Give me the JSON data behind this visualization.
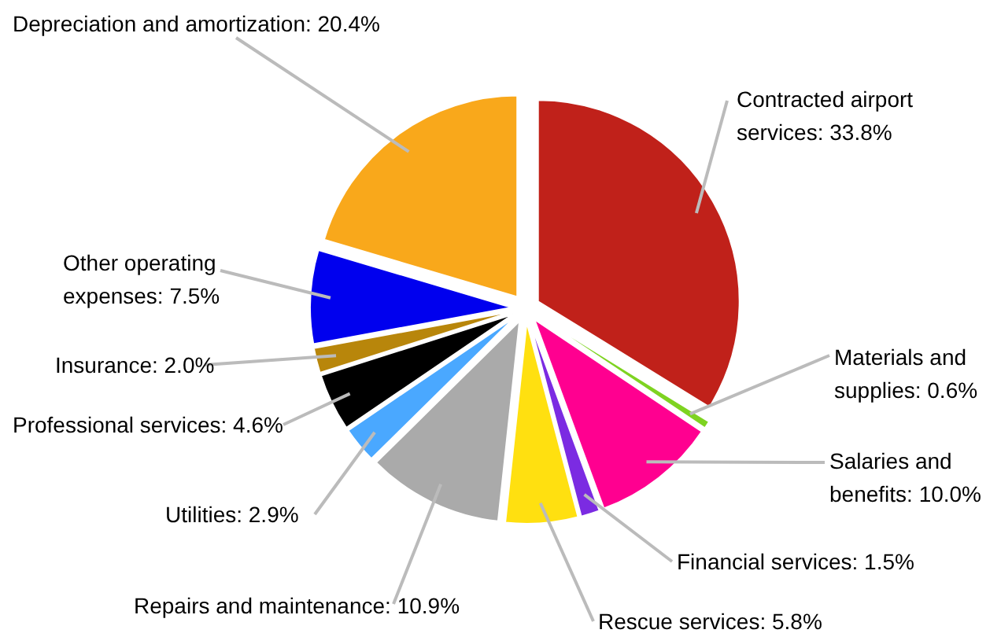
{
  "chart_data": {
    "type": "pie",
    "categories": [
      "Contracted airport services",
      "Materials and supplies",
      "Salaries and benefits",
      "Financial services",
      "Rescue services",
      "Repairs and maintenance",
      "Utilities",
      "Professional services",
      "Insurance",
      "Other operating expenses",
      "Depreciation and amortization"
    ],
    "values": [
      33.8,
      0.6,
      10.0,
      1.5,
      5.8,
      10.9,
      2.9,
      4.6,
      2.0,
      7.5,
      20.4
    ],
    "colors": [
      "#c0211a",
      "#7ed321",
      "#ff0090",
      "#7b2be2",
      "#ffe010",
      "#aaaaaa",
      "#4aa8ff",
      "#000000",
      "#b8860b",
      "#0000ee",
      "#f9a81b"
    ],
    "value_labels": [
      "33.8%",
      "0.6%",
      "10.0%",
      "1.5%",
      "5.8%",
      "10.9%",
      "2.9%",
      "4.6%",
      "2.0%",
      "7.5%",
      "20.4%"
    ]
  }
}
